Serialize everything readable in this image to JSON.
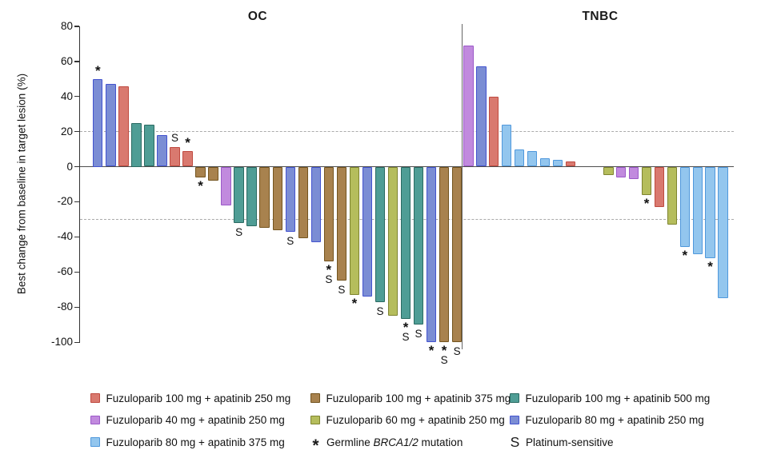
{
  "figure": {
    "background": "#ffffff"
  },
  "chart_data": {
    "type": "bar",
    "subtype": "waterfall",
    "ylabel": "Best change from baseline in target lesion (%)",
    "ylim": [
      -100,
      80
    ],
    "yticks": [
      80,
      60,
      40,
      20,
      0,
      -20,
      -40,
      -60,
      -80,
      -100
    ],
    "reference_lines": [
      {
        "y": 20,
        "style": "dashed"
      },
      {
        "y": -30,
        "style": "dashed"
      }
    ],
    "grid": "off",
    "marker_meanings": {
      "*": "Germline BRCA1/2 mutation",
      "S": "Platinum-sensitive"
    },
    "doses": {
      "red": {
        "label": "Fuzuloparib 100 mg + apatinib 250 mg",
        "fill": "#d9796f",
        "stroke": "#bf4a40"
      },
      "purple": {
        "label": "Fuzuloparib 40 mg + apatinib 250 mg",
        "fill": "#c18ade",
        "stroke": "#9b59c8"
      },
      "lightblue": {
        "label": "Fuzuloparib 80 mg + apatinib 375 mg",
        "fill": "#93c6ee",
        "stroke": "#4f98dc"
      },
      "brown": {
        "label": "Fuzuloparib 100 mg + apatinib 375 mg",
        "fill": "#a8824e",
        "stroke": "#73541f"
      },
      "olive": {
        "label": "Fuzuloparib 60 mg + apatinib 250 mg",
        "fill": "#b5bd5c",
        "stroke": "#7e8430"
      },
      "teal": {
        "label": "Fuzuloparib 100 mg + apatinib 500 mg",
        "fill": "#4f9d95",
        "stroke": "#2a6a62"
      },
      "blue": {
        "label": "Fuzuloparib 80 mg + apatinib 250 mg",
        "fill": "#7b8dd4",
        "stroke": "#4353cf"
      }
    },
    "panels": [
      {
        "title": "OC",
        "bars": [
          {
            "dose": "blue",
            "value": 50,
            "marks": [
              "*"
            ]
          },
          {
            "dose": "blue",
            "value": 47
          },
          {
            "dose": "red",
            "value": 46
          },
          {
            "dose": "teal",
            "value": 25
          },
          {
            "dose": "teal",
            "value": 24
          },
          {
            "dose": "blue",
            "value": 18
          },
          {
            "dose": "red",
            "value": 11,
            "marks": [
              "S"
            ]
          },
          {
            "dose": "red",
            "value": 9,
            "marks": [
              "*"
            ]
          },
          {
            "dose": "brown",
            "value": -6,
            "marks": [
              "*"
            ]
          },
          {
            "dose": "brown",
            "value": -8
          },
          {
            "dose": "purple",
            "value": -22
          },
          {
            "dose": "teal",
            "value": -32,
            "marks": [
              "S"
            ]
          },
          {
            "dose": "teal",
            "value": -34
          },
          {
            "dose": "brown",
            "value": -35
          },
          {
            "dose": "brown",
            "value": -36
          },
          {
            "dose": "blue",
            "value": -37,
            "marks": [
              "S"
            ]
          },
          {
            "dose": "brown",
            "value": -41
          },
          {
            "dose": "blue",
            "value": -43
          },
          {
            "dose": "brown",
            "value": -54,
            "marks": [
              "*",
              "S"
            ]
          },
          {
            "dose": "brown",
            "value": -65,
            "marks": [
              "S"
            ]
          },
          {
            "dose": "olive",
            "value": -73,
            "marks": [
              "*"
            ]
          },
          {
            "dose": "blue",
            "value": -74
          },
          {
            "dose": "teal",
            "value": -77,
            "marks": [
              "S"
            ]
          },
          {
            "dose": "olive",
            "value": -85
          },
          {
            "dose": "teal",
            "value": -87,
            "marks": [
              "*",
              "S"
            ]
          },
          {
            "dose": "teal",
            "value": -90,
            "marks": [
              "S"
            ]
          },
          {
            "dose": "blue",
            "value": -100,
            "marks": [
              "*"
            ]
          },
          {
            "dose": "brown",
            "value": -100,
            "marks": [
              "*",
              "S"
            ]
          },
          {
            "dose": "brown",
            "value": -100,
            "marks": [
              "S"
            ]
          }
        ]
      },
      {
        "title": "TNBC",
        "bars": [
          {
            "dose": "purple",
            "value": 69
          },
          {
            "dose": "blue",
            "value": 57
          },
          {
            "dose": "red",
            "value": 40
          },
          {
            "dose": "lightblue",
            "value": 24
          },
          {
            "dose": "lightblue",
            "value": 10
          },
          {
            "dose": "lightblue",
            "value": 9
          },
          {
            "dose": "lightblue",
            "value": 5
          },
          {
            "dose": "lightblue",
            "value": 4
          },
          {
            "dose": "red",
            "value": 3
          },
          {
            "gap": true
          },
          {
            "gap": true
          },
          {
            "dose": "olive",
            "value": -5
          },
          {
            "dose": "purple",
            "value": -6
          },
          {
            "dose": "purple",
            "value": -7
          },
          {
            "dose": "olive",
            "value": -16,
            "marks": [
              "*"
            ]
          },
          {
            "dose": "red",
            "value": -23
          },
          {
            "dose": "olive",
            "value": -33
          },
          {
            "dose": "lightblue",
            "value": -46,
            "marks": [
              "*"
            ]
          },
          {
            "dose": "lightblue",
            "value": -50
          },
          {
            "dose": "lightblue",
            "value": -52,
            "marks": [
              "*"
            ]
          },
          {
            "dose": "lightblue",
            "value": -75
          }
        ]
      }
    ]
  },
  "legend": {
    "items": [
      {
        "swatch": "red",
        "label": "Fuzuloparib 100 mg + apatinib 250 mg"
      },
      {
        "swatch": "purple",
        "label": "Fuzuloparib 40 mg + apatinib 250 mg"
      },
      {
        "swatch": "lightblue",
        "label": "Fuzuloparib 80 mg + apatinib 375 mg"
      },
      {
        "swatch": "brown",
        "label": "Fuzuloparib 100 mg + apatinib 375 mg"
      },
      {
        "swatch": "olive",
        "label": "Fuzuloparib 60 mg + apatinib 250 mg"
      },
      {
        "marker": "*",
        "label_parts": [
          {
            "text": "Germline "
          },
          {
            "text": "BRCA1/2",
            "italic": true
          },
          {
            "text": " mutation"
          }
        ]
      },
      {
        "swatch": "teal",
        "label": "Fuzuloparib 100 mg + apatinib 500 mg"
      },
      {
        "swatch": "blue",
        "label": "Fuzuloparib 80 mg + apatinib 250 mg"
      },
      {
        "marker": "S",
        "label": "Platinum-sensitive"
      }
    ]
  }
}
